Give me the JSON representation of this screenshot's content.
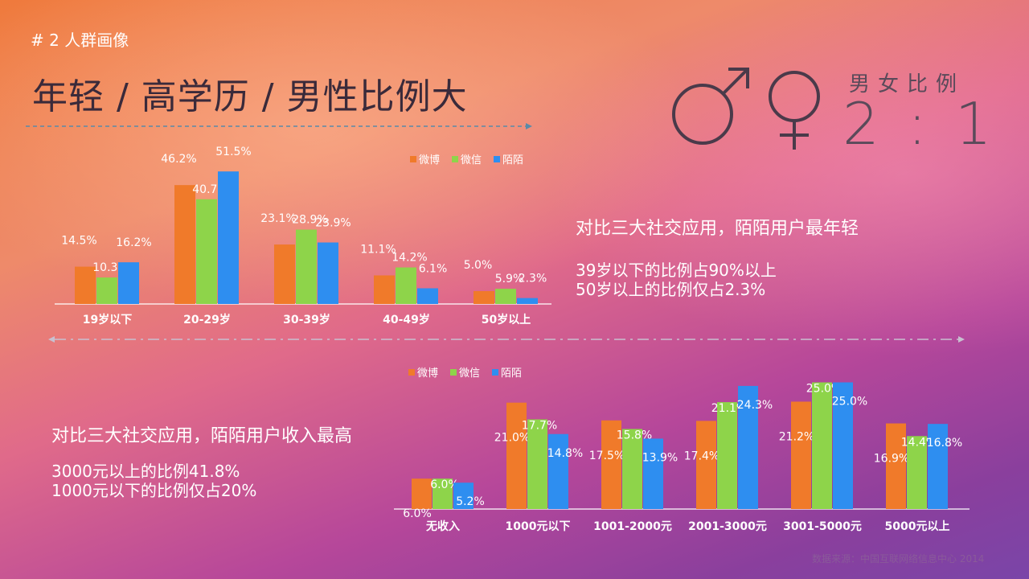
{
  "header": {
    "section_tag": "# 2 人群画像",
    "title": "年轻 / 高学历 / 男性比例大"
  },
  "gender_ratio": {
    "label": "男女比例",
    "value": "2 : 1"
  },
  "insights": {
    "age": {
      "headline": "对比三大社交应用，陌陌用户最年轻",
      "line1": "39岁以下的比例占90%以上",
      "line2": "50岁以上的比例仅占2.3%"
    },
    "income": {
      "headline": "对比三大社交应用，陌陌用户收入最高",
      "line1": "3000元以上的比例41.8%",
      "line2": "1000元以下的比例仅占20%"
    }
  },
  "footer": {
    "source": "数据来源：中国互联网络信息中心 2014"
  },
  "colors": {
    "weibo": "#f07a2a",
    "weixin": "#8ed44a",
    "momo": "#2e8ef0"
  },
  "chart_data": [
    {
      "type": "bar",
      "categories": [
        "19岁以下",
        "20-29岁",
        "30-39岁",
        "40-49岁",
        "50岁以上"
      ],
      "series": [
        {
          "name": "微博",
          "values": [
            14.5,
            46.2,
            23.1,
            11.1,
            5.0
          ],
          "labels": [
            "14.5%",
            "46.2%",
            "23.1%",
            "11.1%",
            "5.0%"
          ]
        },
        {
          "name": "微信",
          "values": [
            10.3,
            40.7,
            28.9,
            14.2,
            5.9
          ],
          "labels": [
            "10.3%",
            "40.7%",
            "28.9%",
            "14.2%",
            "5.9%"
          ]
        },
        {
          "name": "陌陌",
          "values": [
            16.2,
            51.5,
            23.9,
            6.1,
            2.3
          ],
          "labels": [
            "16.2%",
            "51.5%",
            "23.9%",
            "6.1%",
            "2.3%"
          ]
        }
      ],
      "legend": "top-right"
    },
    {
      "type": "bar",
      "categories": [
        "无收入",
        "1000元以下",
        "1001-2000元",
        "2001-3000元",
        "3001-5000元",
        "5000元以上"
      ],
      "series": [
        {
          "name": "微博",
          "values": [
            6.0,
            21.0,
            17.5,
            17.4,
            21.2,
            16.9
          ],
          "labels": [
            "6.0%",
            "21.0%",
            "17.5%",
            "17.4%",
            "21.2%",
            "16.9%"
          ]
        },
        {
          "name": "微信",
          "values": [
            6.0,
            17.7,
            15.8,
            21.1,
            25.0,
            14.4
          ],
          "labels": [
            "6.0%",
            "17.7%",
            "15.8%",
            "21.1%",
            "25.0%",
            "14.4%"
          ]
        },
        {
          "name": "陌陌",
          "values": [
            5.2,
            14.8,
            13.9,
            24.3,
            25.0,
            16.8
          ],
          "labels": [
            "5.2%",
            "14.8%",
            "13.9%",
            "24.3%",
            "25.0%",
            "16.8%"
          ]
        }
      ],
      "legend": "top-left"
    }
  ]
}
